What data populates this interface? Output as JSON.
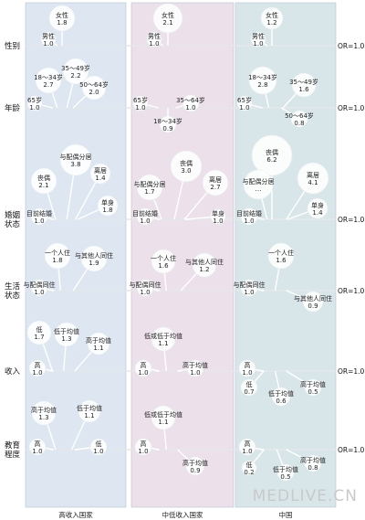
{
  "columns": [
    {
      "title": "高收入国家",
      "color": "#dde6f1"
    },
    {
      "title": "中低收入国家",
      "color": "#ece0ea"
    },
    {
      "title": "中国",
      "color": "#d8e6ea"
    }
  ],
  "or_label": "OR=1.0",
  "rows": [
    {
      "label": "性别",
      "cells": [
        [
          {
            "t": "女性",
            "v": "1.8",
            "r": 14,
            "dx": 0,
            "dy": -30
          },
          {
            "t": "男性",
            "v": "1.0",
            "r": 8,
            "dx": -15,
            "dy": -7
          }
        ],
        [
          {
            "t": "女性",
            "v": "2.1",
            "r": 16,
            "dx": 0,
            "dy": -30
          },
          {
            "t": "男性",
            "v": "1.0",
            "r": 8,
            "dx": -15,
            "dy": -7
          }
        ],
        [
          {
            "t": "女性",
            "v": "1.2",
            "r": 12,
            "dx": 0,
            "dy": -30
          },
          {
            "t": "男性",
            "v": "1.0",
            "r": 8,
            "dx": -15,
            "dy": -7
          }
        ]
      ]
    },
    {
      "label": "年龄",
      "cells": [
        [
          {
            "t": "18～34岁",
            "v": "2.7",
            "r": 14,
            "dx": -15,
            "dy": -30
          },
          {
            "t": "35～49岁",
            "v": "2.2",
            "r": 14,
            "dx": 15,
            "dy": -40
          },
          {
            "t": "50～64岁",
            "v": "2.0",
            "r": 13,
            "dx": 35,
            "dy": -22
          },
          {
            "t": "65岁",
            "v": "1.0",
            "r": 8,
            "dx": -30,
            "dy": -5
          }
        ],
        [
          {
            "t": "65岁",
            "v": "1.0",
            "r": 8,
            "dx": -30,
            "dy": -5
          },
          {
            "t": "35～64岁",
            "v": "1.0",
            "r": 9,
            "dx": 25,
            "dy": -5
          },
          {
            "t": "18～34岁",
            "v": "0.9",
            "r": 9,
            "dx": 0,
            "dy": 18
          }
        ],
        [
          {
            "t": "18～34岁",
            "v": "2.8",
            "r": 15,
            "dx": -10,
            "dy": -30
          },
          {
            "t": "35～49岁",
            "v": "1.6",
            "r": 13,
            "dx": 35,
            "dy": -25
          },
          {
            "t": "65岁",
            "v": "1.0",
            "r": 8,
            "dx": -30,
            "dy": -5
          },
          {
            "t": "50～64岁",
            "v": "0.8",
            "r": 9,
            "dx": 30,
            "dy": 12
          }
        ]
      ]
    },
    {
      "label": "婚姻状态",
      "cells": [
        [
          {
            "t": "与配偶分居",
            "v": "3.8",
            "r": 17,
            "dx": 15,
            "dy": -65
          },
          {
            "t": "丧偶",
            "v": "2.1",
            "r": 14,
            "dx": -20,
            "dy": -42
          },
          {
            "t": "离居",
            "v": "1.4",
            "r": 11,
            "dx": 42,
            "dy": -50
          },
          {
            "t": "单身",
            "v": "1.8",
            "r": 11,
            "dx": 50,
            "dy": -15
          },
          {
            "t": "目前结婚",
            "v": "1.0",
            "r": 9,
            "dx": -25,
            "dy": -3
          }
        ],
        [
          {
            "t": "丧偶",
            "v": "3.0",
            "r": 17,
            "dx": 20,
            "dy": -58
          },
          {
            "t": "与配偶分居",
            "v": "1.7",
            "r": 14,
            "dx": -20,
            "dy": -35
          },
          {
            "t": "离居",
            "v": "2.7",
            "r": 14,
            "dx": 52,
            "dy": -40
          },
          {
            "t": "单身",
            "v": "1.0",
            "r": 8,
            "dx": 55,
            "dy": -3
          },
          {
            "t": "目前结婚",
            "v": "1.0",
            "r": 9,
            "dx": -25,
            "dy": -3
          }
        ],
        [
          {
            "t": "丧偶",
            "v": "6.2",
            "r": 22,
            "dx": 0,
            "dy": -70
          },
          {
            "t": "离居",
            "v": "4.1",
            "r": 17,
            "dx": 45,
            "dy": -45
          },
          {
            "t": "与配偶分居",
            "v": "…",
            "r": 16,
            "dx": -15,
            "dy": -38
          },
          {
            "t": "单身",
            "v": "1.4",
            "r": 11,
            "dx": 50,
            "dy": -12
          },
          {
            "t": "目前结婚",
            "v": "1.0",
            "r": 9,
            "dx": -25,
            "dy": -3
          }
        ]
      ]
    },
    {
      "label": "生活状态",
      "cells": [
        [
          {
            "t": "一个人住",
            "v": "1.8",
            "r": 14,
            "dx": -5,
            "dy": -38
          },
          {
            "t": "与其他人同住",
            "v": "1.9",
            "r": 14,
            "dx": 35,
            "dy": -35
          },
          {
            "t": "与配偶同住",
            "v": "1.0",
            "r": 9,
            "dx": -25,
            "dy": -3
          }
        ],
        [
          {
            "t": "一个人住",
            "v": "1.6",
            "r": 13,
            "dx": -5,
            "dy": -32
          },
          {
            "t": "与其他人同住",
            "v": "1.2",
            "r": 13,
            "dx": 40,
            "dy": -28
          },
          {
            "t": "与配偶同住",
            "v": "1.0",
            "r": 9,
            "dx": -25,
            "dy": -3
          }
        ],
        [
          {
            "t": "一个人住",
            "v": "1.6",
            "r": 14,
            "dx": 10,
            "dy": -38
          },
          {
            "t": "与配偶同住",
            "v": "1.0",
            "r": 9,
            "dx": -25,
            "dy": -3
          },
          {
            "t": "与其他人同住",
            "v": "0.9",
            "r": 11,
            "dx": 45,
            "dy": 12
          }
        ]
      ]
    },
    {
      "label": "收入",
      "cells": [
        [
          {
            "t": "低",
            "v": "1.7",
            "r": 13,
            "dx": -30,
            "dy": -42
          },
          {
            "t": "低于均值",
            "v": "1.3",
            "r": 13,
            "dx": 5,
            "dy": -40
          },
          {
            "t": "高于均值",
            "v": "1.1",
            "r": 12,
            "dx": 40,
            "dy": -30
          },
          {
            "t": "高",
            "v": "1.0",
            "r": 9,
            "dx": -27,
            "dy": -3
          }
        ],
        [
          {
            "t": "低或低于均值",
            "v": "1.1",
            "r": 13,
            "dx": -5,
            "dy": -35
          },
          {
            "t": "高",
            "v": "1.0",
            "r": 9,
            "dx": -27,
            "dy": -3
          },
          {
            "t": "高于均值",
            "v": "1.0",
            "r": 9,
            "dx": 30,
            "dy": -3
          }
        ],
        [
          {
            "t": "高",
            "v": "1.0",
            "r": 9,
            "dx": -27,
            "dy": -3
          },
          {
            "t": "低",
            "v": "0.7",
            "r": 9,
            "dx": -25,
            "dy": 18
          },
          {
            "t": "低于均值",
            "v": "0.6",
            "r": 10,
            "dx": 10,
            "dy": 28
          },
          {
            "t": "高于均值",
            "v": "0.5",
            "r": 9,
            "dx": 45,
            "dy": 18
          }
        ]
      ]
    },
    {
      "label": "教育程度",
      "cells": [
        [
          {
            "t": "高于均值",
            "v": "1.3",
            "r": 13,
            "dx": -20,
            "dy": -40
          },
          {
            "t": "低于均值",
            "v": "1.1",
            "r": 12,
            "dx": 30,
            "dy": -42
          },
          {
            "t": "高",
            "v": "1.0",
            "r": 9,
            "dx": -27,
            "dy": -3
          },
          {
            "t": "低",
            "v": "1.0",
            "r": 9,
            "dx": 40,
            "dy": -3
          }
        ],
        [
          {
            "t": "低或低于均值",
            "v": "1.1",
            "r": 13,
            "dx": -5,
            "dy": -35
          },
          {
            "t": "高",
            "v": "1.0",
            "r": 9,
            "dx": -27,
            "dy": -3
          },
          {
            "t": "高于均值",
            "v": "0.9",
            "r": 10,
            "dx": 30,
            "dy": 18
          }
        ],
        [
          {
            "t": "高",
            "v": "1.0",
            "r": 9,
            "dx": -27,
            "dy": -3
          },
          {
            "t": "低",
            "v": "0.2",
            "r": 8,
            "dx": -25,
            "dy": 20
          },
          {
            "t": "低于均值",
            "v": "0.5",
            "r": 9,
            "dx": 15,
            "dy": 25
          },
          {
            "t": "高于均值",
            "v": "0.8",
            "r": 9,
            "dx": 45,
            "dy": 15
          }
        ]
      ]
    }
  ],
  "watermark": "MEDLIVE.CN"
}
